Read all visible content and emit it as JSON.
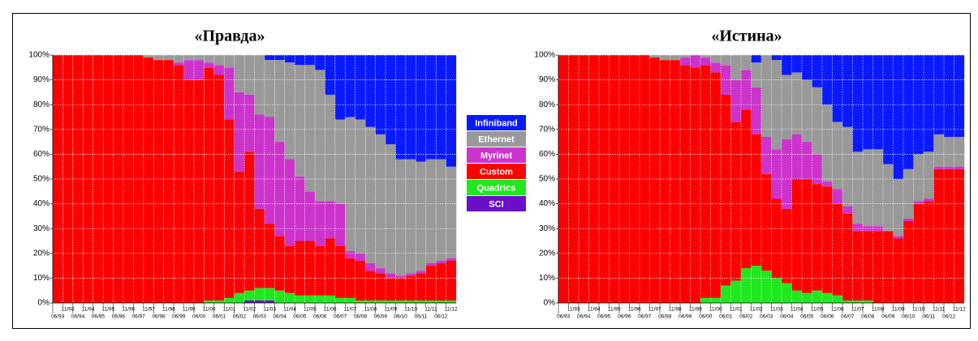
{
  "chart_data": [
    {
      "type": "stacked-bar",
      "title": "«Правда»",
      "categories": [
        "06/93",
        "11/93",
        "06/94",
        "11/94",
        "06/95",
        "11/95",
        "06/96",
        "11/96",
        "06/97",
        "11/97",
        "06/98",
        "11/98",
        "06/99",
        "11/99",
        "06/00",
        "11/00",
        "06/01",
        "11/01",
        "06/02",
        "11/02",
        "06/03",
        "11/03",
        "06/04",
        "11/04",
        "06/05",
        "11/05",
        "06/06",
        "11/06",
        "06/07",
        "11/07",
        "06/08",
        "11/08",
        "06/09",
        "11/09",
        "06/10",
        "11/10",
        "06/11",
        "11/11",
        "06/12",
        "11/12"
      ],
      "ylim": [
        0,
        100
      ],
      "yticks": [
        {
          "value": 0,
          "label": "0%"
        },
        {
          "value": 10,
          "label": "10%"
        },
        {
          "value": 20,
          "label": "20%"
        },
        {
          "value": 30,
          "label": "30%"
        },
        {
          "value": 40,
          "label": "40%"
        },
        {
          "value": 50,
          "label": "50%"
        },
        {
          "value": 60,
          "label": "60%"
        },
        {
          "value": 70,
          "label": "70%"
        },
        {
          "value": 80,
          "label": "80%"
        },
        {
          "value": 90,
          "label": "90%"
        },
        {
          "value": 100,
          "label": "100%"
        }
      ],
      "grid": true,
      "series": [
        {
          "name": "SCI",
          "color": "#6a0fc8",
          "values": [
            0,
            0,
            0,
            0,
            0,
            0,
            0,
            0,
            0,
            0,
            0,
            0,
            0,
            0,
            0,
            0,
            0,
            0,
            0,
            1,
            1,
            1,
            0,
            0,
            0,
            0,
            0,
            0,
            0,
            0,
            0,
            0,
            0,
            0,
            0,
            0,
            0,
            0,
            0,
            0
          ]
        },
        {
          "name": "Quadrics",
          "color": "#1ee81e",
          "values": [
            0,
            0,
            0,
            0,
            0,
            0,
            0,
            0,
            0,
            0,
            0,
            0,
            0,
            0,
            0,
            1,
            1,
            2,
            4,
            4,
            5,
            5,
            5,
            4,
            3,
            3,
            3,
            3,
            2,
            2,
            1,
            1,
            1,
            1,
            1,
            1,
            1,
            1,
            1,
            1
          ]
        },
        {
          "name": "Custom",
          "color": "#ff0000",
          "values": [
            100,
            100,
            100,
            100,
            100,
            100,
            100,
            100,
            100,
            99,
            98,
            98,
            96,
            90,
            90,
            94,
            91,
            72,
            49,
            56,
            32,
            26,
            22,
            19,
            22,
            22,
            20,
            23,
            21,
            16,
            16,
            12,
            11,
            9,
            9,
            10,
            11,
            14,
            15,
            16
          ]
        },
        {
          "name": "Myrinet",
          "color": "#cc33cc",
          "values": [
            0,
            0,
            0,
            0,
            0,
            0,
            0,
            0,
            0,
            0,
            0,
            0,
            1,
            8,
            8,
            2,
            4,
            21,
            32,
            23,
            38,
            43,
            38,
            35,
            26,
            20,
            18,
            15,
            17,
            3,
            3,
            3,
            2,
            2,
            1,
            1,
            1,
            1,
            1,
            1
          ]
        },
        {
          "name": "Ethernet",
          "color": "#999999",
          "values": [
            0,
            0,
            0,
            0,
            0,
            0,
            0,
            0,
            0,
            1,
            2,
            2,
            3,
            2,
            2,
            3,
            4,
            5,
            15,
            16,
            24,
            23,
            33,
            39,
            45,
            51,
            53,
            43,
            34,
            54,
            54,
            55,
            54,
            52,
            47,
            46,
            44,
            42,
            41,
            37
          ]
        },
        {
          "name": "Infiniband",
          "color": "#0a1aff",
          "values": [
            0,
            0,
            0,
            0,
            0,
            0,
            0,
            0,
            0,
            0,
            0,
            0,
            0,
            0,
            0,
            0,
            0,
            0,
            0,
            0,
            0,
            2,
            2,
            3,
            4,
            4,
            6,
            16,
            26,
            25,
            26,
            29,
            32,
            36,
            42,
            42,
            43,
            42,
            42,
            45
          ]
        }
      ]
    },
    {
      "type": "stacked-bar",
      "title": "«Истина»",
      "categories": [
        "06/93",
        "11/93",
        "06/94",
        "11/94",
        "06/95",
        "11/95",
        "06/96",
        "11/96",
        "06/97",
        "11/97",
        "06/98",
        "11/98",
        "06/99",
        "11/99",
        "06/00",
        "11/00",
        "06/01",
        "11/01",
        "06/02",
        "11/02",
        "06/03",
        "11/03",
        "06/04",
        "11/04",
        "06/05",
        "11/05",
        "06/06",
        "11/06",
        "06/07",
        "11/07",
        "06/08",
        "11/08",
        "06/09",
        "11/09",
        "06/10",
        "11/10",
        "06/11",
        "11/11",
        "06/12",
        "11/12"
      ],
      "ylim": [
        0,
        100
      ],
      "yticks": [
        {
          "value": 0,
          "label": "0%"
        },
        {
          "value": 10,
          "label": "10%"
        },
        {
          "value": 20,
          "label": "20%"
        },
        {
          "value": 30,
          "label": "30%"
        },
        {
          "value": 40,
          "label": "40%"
        },
        {
          "value": 50,
          "label": "50%"
        },
        {
          "value": 60,
          "label": "60%"
        },
        {
          "value": 70,
          "label": "70%"
        },
        {
          "value": 80,
          "label": "80%"
        },
        {
          "value": 90,
          "label": "90%"
        },
        {
          "value": 100,
          "label": "100%"
        }
      ],
      "grid": true,
      "series": [
        {
          "name": "SCI",
          "color": "#6a0fc8",
          "values": [
            0,
            0,
            0,
            0,
            0,
            0,
            0,
            0,
            0,
            0,
            0,
            0,
            0,
            0,
            0,
            0,
            0,
            0,
            0,
            0,
            0,
            0,
            0,
            0,
            0,
            0,
            0,
            0,
            0,
            0,
            0,
            0,
            0,
            0,
            0,
            0,
            0,
            0,
            0,
            0
          ]
        },
        {
          "name": "Quadrics",
          "color": "#1ee81e",
          "values": [
            0,
            0,
            0,
            0,
            0,
            0,
            0,
            0,
            0,
            0,
            0,
            0,
            0,
            0,
            2,
            2,
            7,
            9,
            14,
            15,
            13,
            10,
            8,
            5,
            4,
            5,
            4,
            3,
            1,
            1,
            1,
            0,
            0,
            0,
            0,
            0,
            0,
            0,
            0,
            0
          ]
        },
        {
          "name": "Custom",
          "color": "#ff0000",
          "values": [
            100,
            100,
            100,
            100,
            100,
            100,
            100,
            100,
            100,
            99,
            98,
            98,
            96,
            95,
            94,
            91,
            77,
            64,
            64,
            53,
            39,
            32,
            30,
            45,
            46,
            43,
            43,
            37,
            35,
            28,
            28,
            29,
            29,
            26,
            33,
            40,
            41,
            54,
            54,
            54
          ]
        },
        {
          "name": "Myrinet",
          "color": "#cc33cc",
          "values": [
            0,
            0,
            0,
            0,
            0,
            0,
            0,
            0,
            0,
            0,
            0,
            0,
            3,
            5,
            3,
            4,
            12,
            17,
            16,
            19,
            15,
            20,
            28,
            18,
            15,
            12,
            2,
            6,
            3,
            3,
            2,
            2,
            0,
            1,
            1,
            1,
            1,
            1,
            1,
            1
          ]
        },
        {
          "name": "Ethernet",
          "color": "#999999",
          "values": [
            0,
            0,
            0,
            0,
            0,
            0,
            0,
            0,
            0,
            1,
            2,
            2,
            1,
            0,
            1,
            3,
            4,
            10,
            6,
            10,
            33,
            36,
            26,
            25,
            25,
            27,
            31,
            27,
            32,
            29,
            31,
            31,
            27,
            23,
            20,
            19,
            19,
            13,
            12,
            12
          ]
        },
        {
          "name": "Infiniband",
          "color": "#0a1aff",
          "values": [
            0,
            0,
            0,
            0,
            0,
            0,
            0,
            0,
            0,
            0,
            0,
            0,
            0,
            0,
            0,
            0,
            0,
            0,
            0,
            3,
            0,
            2,
            8,
            7,
            10,
            13,
            20,
            27,
            29,
            39,
            38,
            38,
            44,
            50,
            46,
            40,
            39,
            32,
            33,
            33
          ]
        }
      ]
    }
  ]
}
